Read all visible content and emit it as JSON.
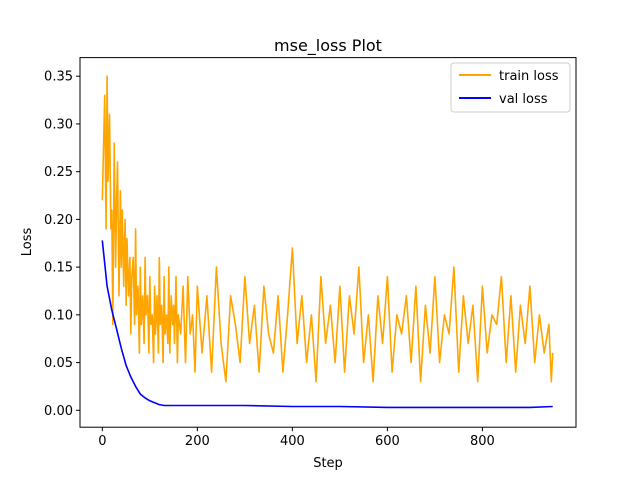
{
  "chart_data": {
    "type": "line",
    "title": "mse_loss Plot",
    "xlabel": "Step",
    "ylabel": "Loss",
    "xlim": [
      -47,
      997
    ],
    "ylim": [
      -0.0177,
      0.3695
    ],
    "x_ticks": [
      0,
      200,
      400,
      600,
      800
    ],
    "y_ticks": [
      0.0,
      0.05,
      0.1,
      0.15,
      0.2,
      0.25,
      0.3,
      0.35
    ],
    "x_tick_labels": [
      "0",
      "200",
      "400",
      "600",
      "800"
    ],
    "y_tick_labels": [
      "0.00",
      "0.05",
      "0.10",
      "0.15",
      "0.20",
      "0.25",
      "0.30",
      "0.35"
    ],
    "legend_position": "top-right",
    "grid": false,
    "series": [
      {
        "name": "train loss",
        "color": "#ffa500",
        "x": [
          0,
          5,
          8,
          10,
          12,
          15,
          18,
          20,
          22,
          25,
          28,
          30,
          32,
          35,
          38,
          40,
          42,
          45,
          48,
          50,
          52,
          55,
          58,
          60,
          62,
          65,
          68,
          70,
          72,
          75,
          78,
          80,
          82,
          85,
          88,
          90,
          92,
          95,
          98,
          100,
          102,
          105,
          108,
          110,
          112,
          115,
          118,
          120,
          122,
          125,
          128,
          130,
          132,
          135,
          138,
          140,
          142,
          145,
          148,
          150,
          152,
          155,
          158,
          160,
          165,
          170,
          175,
          180,
          185,
          190,
          195,
          200,
          210,
          220,
          230,
          240,
          250,
          260,
          270,
          280,
          290,
          300,
          310,
          320,
          330,
          340,
          350,
          360,
          370,
          380,
          390,
          400,
          410,
          420,
          430,
          440,
          450,
          460,
          470,
          480,
          490,
          500,
          510,
          520,
          530,
          540,
          550,
          560,
          570,
          580,
          590,
          600,
          610,
          620,
          630,
          640,
          650,
          660,
          670,
          680,
          690,
          700,
          710,
          720,
          730,
          740,
          750,
          760,
          770,
          780,
          790,
          800,
          810,
          820,
          830,
          840,
          850,
          860,
          870,
          880,
          890,
          900,
          910,
          920,
          930,
          940,
          945,
          948
        ],
        "y": [
          0.22,
          0.33,
          0.19,
          0.35,
          0.24,
          0.31,
          0.19,
          0.21,
          0.09,
          0.28,
          0.15,
          0.22,
          0.26,
          0.12,
          0.23,
          0.15,
          0.21,
          0.13,
          0.2,
          0.11,
          0.18,
          0.12,
          0.16,
          0.08,
          0.14,
          0.16,
          0.09,
          0.19,
          0.1,
          0.13,
          0.06,
          0.15,
          0.09,
          0.12,
          0.07,
          0.16,
          0.1,
          0.12,
          0.06,
          0.14,
          0.09,
          0.1,
          0.05,
          0.13,
          0.08,
          0.12,
          0.06,
          0.16,
          0.09,
          0.11,
          0.05,
          0.14,
          0.08,
          0.1,
          0.07,
          0.15,
          0.06,
          0.12,
          0.09,
          0.11,
          0.07,
          0.14,
          0.05,
          0.1,
          0.08,
          0.13,
          0.05,
          0.14,
          0.08,
          0.1,
          0.04,
          0.13,
          0.06,
          0.12,
          0.04,
          0.15,
          0.07,
          0.03,
          0.12,
          0.09,
          0.05,
          0.14,
          0.07,
          0.11,
          0.04,
          0.13,
          0.08,
          0.06,
          0.12,
          0.04,
          0.1,
          0.17,
          0.07,
          0.12,
          0.05,
          0.1,
          0.03,
          0.14,
          0.07,
          0.11,
          0.05,
          0.13,
          0.04,
          0.12,
          0.08,
          0.15,
          0.05,
          0.1,
          0.03,
          0.12,
          0.07,
          0.14,
          0.04,
          0.1,
          0.08,
          0.12,
          0.05,
          0.13,
          0.03,
          0.11,
          0.06,
          0.14,
          0.05,
          0.1,
          0.08,
          0.15,
          0.04,
          0.12,
          0.07,
          0.11,
          0.03,
          0.13,
          0.06,
          0.1,
          0.09,
          0.14,
          0.05,
          0.12,
          0.04,
          0.11,
          0.07,
          0.13,
          0.05,
          0.1,
          0.06,
          0.09,
          0.03,
          0.06
        ]
      },
      {
        "name": "val loss",
        "color": "#0000ff",
        "x": [
          0,
          10,
          20,
          30,
          40,
          50,
          60,
          70,
          80,
          90,
          100,
          110,
          120,
          130,
          140,
          150,
          200,
          300,
          400,
          500,
          600,
          700,
          800,
          900,
          948
        ],
        "y": [
          0.178,
          0.13,
          0.105,
          0.085,
          0.065,
          0.047,
          0.035,
          0.025,
          0.017,
          0.013,
          0.01,
          0.008,
          0.006,
          0.005,
          0.005,
          0.005,
          0.005,
          0.005,
          0.004,
          0.004,
          0.003,
          0.003,
          0.003,
          0.003,
          0.004
        ]
      }
    ]
  }
}
